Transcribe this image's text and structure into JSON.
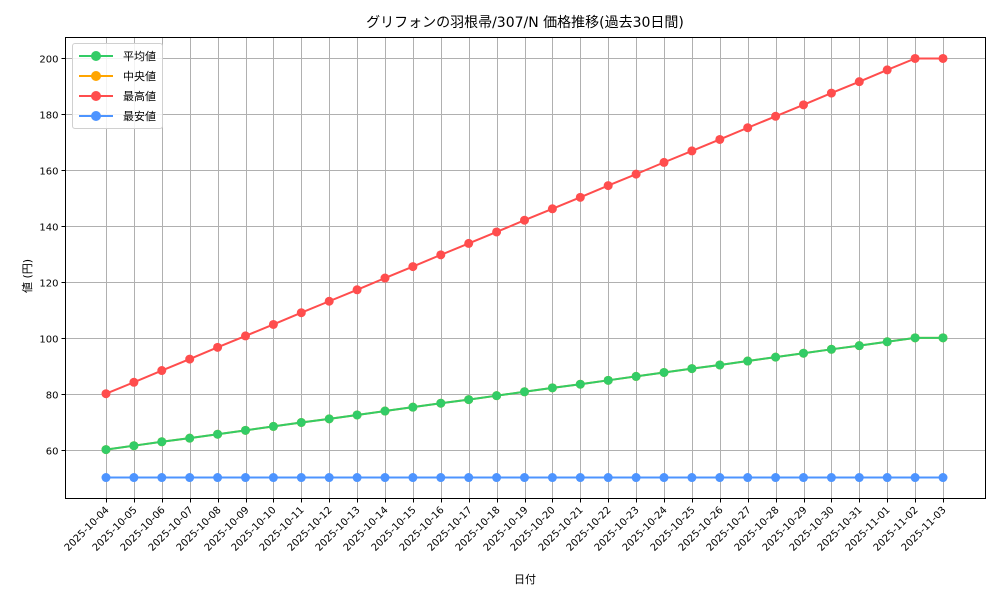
{
  "chart_data": {
    "type": "line",
    "title": "グリフォンの羽根帚/307/N 価格推移(過去30日間)",
    "xlabel": "日付",
    "ylabel": "値 (円)",
    "ylim": [
      42.5,
      207.5
    ],
    "yticks": [
      60,
      80,
      100,
      120,
      140,
      160,
      180,
      200
    ],
    "grid": true,
    "legend_position": "upper left",
    "categories": [
      "2025-10-04",
      "2025-10-05",
      "2025-10-06",
      "2025-10-07",
      "2025-10-08",
      "2025-10-09",
      "2025-10-10",
      "2025-10-11",
      "2025-10-12",
      "2025-10-13",
      "2025-10-14",
      "2025-10-15",
      "2025-10-16",
      "2025-10-17",
      "2025-10-18",
      "2025-10-19",
      "2025-10-20",
      "2025-10-21",
      "2025-10-22",
      "2025-10-23",
      "2025-10-24",
      "2025-10-25",
      "2025-10-26",
      "2025-10-27",
      "2025-10-28",
      "2025-10-29",
      "2025-10-30",
      "2025-10-31",
      "2025-11-01",
      "2025-11-02",
      "2025-11-03"
    ],
    "series": [
      {
        "name": "平均値",
        "color": "#33cc66",
        "values": [
          60,
          61.4,
          62.8,
          64.1,
          65.5,
          66.9,
          68.3,
          69.7,
          71.0,
          72.4,
          73.8,
          75.2,
          76.6,
          77.9,
          79.3,
          80.7,
          82.1,
          83.4,
          84.8,
          86.2,
          87.6,
          89.0,
          90.3,
          91.7,
          93.1,
          94.5,
          95.9,
          97.2,
          98.6,
          100,
          100
        ]
      },
      {
        "name": "中央値",
        "color": "#ffa500",
        "values": [
          60,
          61.4,
          62.8,
          64.1,
          65.5,
          66.9,
          68.3,
          69.7,
          71.0,
          72.4,
          73.8,
          75.2,
          76.6,
          77.9,
          79.3,
          80.7,
          82.1,
          83.4,
          84.8,
          86.2,
          87.6,
          89.0,
          90.3,
          91.7,
          93.1,
          94.5,
          95.9,
          97.2,
          98.6,
          100,
          100
        ]
      },
      {
        "name": "最高値",
        "color": "#ff4d4d",
        "values": [
          80,
          84.1,
          88.3,
          92.4,
          96.6,
          100.7,
          104.8,
          109.0,
          113.1,
          117.2,
          121.4,
          125.5,
          129.7,
          133.8,
          137.9,
          142.1,
          146.2,
          150.3,
          154.5,
          158.6,
          162.8,
          166.9,
          171.0,
          175.2,
          179.3,
          183.4,
          187.6,
          191.7,
          195.9,
          200,
          200
        ]
      },
      {
        "name": "最安値",
        "color": "#4d94ff",
        "values": [
          50,
          50,
          50,
          50,
          50,
          50,
          50,
          50,
          50,
          50,
          50,
          50,
          50,
          50,
          50,
          50,
          50,
          50,
          50,
          50,
          50,
          50,
          50,
          50,
          50,
          50,
          50,
          50,
          50,
          50,
          50
        ]
      }
    ]
  }
}
